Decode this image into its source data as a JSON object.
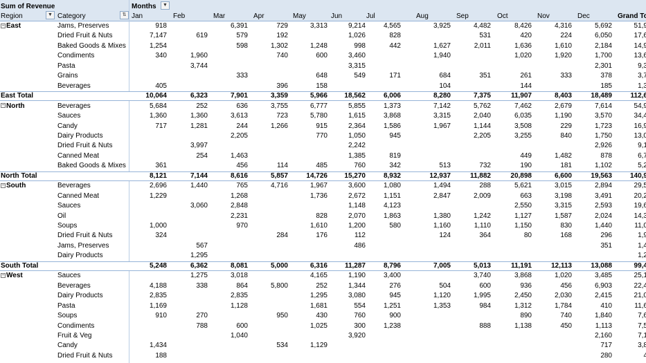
{
  "header": {
    "corner_label": "Sum of Revenue",
    "column_label": "Months",
    "row_label": "Region",
    "category_label": "Category",
    "months": [
      "Jan",
      "Feb",
      "Mar",
      "Apr",
      "May",
      "Jun",
      "Jul",
      "Aug",
      "Sep",
      "Oct",
      "Nov",
      "Dec",
      "Grand To"
    ]
  },
  "rows": [
    {
      "region": "East",
      "category": "Jams, Preserves",
      "values": [
        "918",
        "",
        "6,391",
        "729",
        "3,313",
        "9,214",
        "4,565",
        "3,925",
        "4,482",
        "8,426",
        "4,316",
        "5,692",
        "51,9"
      ]
    },
    {
      "region": "",
      "category": "Dried Fruit & Nuts",
      "values": [
        "7,147",
        "619",
        "579",
        "192",
        "",
        "1,026",
        "828",
        "",
        "531",
        "420",
        "224",
        "6,050",
        "17,6"
      ]
    },
    {
      "region": "",
      "category": "Baked Goods & Mixes",
      "values": [
        "1,254",
        "",
        "598",
        "1,302",
        "1,248",
        "998",
        "442",
        "1,627",
        "2,011",
        "1,636",
        "1,610",
        "2,184",
        "14,9"
      ]
    },
    {
      "region": "",
      "category": "Condiments",
      "values": [
        "340",
        "1,960",
        "",
        "740",
        "600",
        "3,460",
        "",
        "1,940",
        "",
        "1,020",
        "1,920",
        "1,700",
        "13,6"
      ]
    },
    {
      "region": "",
      "category": "Pasta",
      "values": [
        "",
        "3,744",
        "",
        "",
        "",
        "3,315",
        "",
        "",
        "",
        "",
        "",
        "2,301",
        "9,3"
      ]
    },
    {
      "region": "",
      "category": "Grains",
      "values": [
        "",
        "",
        "333",
        "",
        "648",
        "549",
        "171",
        "684",
        "351",
        "261",
        "333",
        "378",
        "3,7"
      ]
    },
    {
      "region": "",
      "category": "Beverages",
      "values": [
        "405",
        "",
        "",
        "396",
        "158",
        "",
        "",
        "104",
        "",
        "144",
        "",
        "185",
        "1,3"
      ]
    },
    {
      "total": true,
      "region": "East Total",
      "values": [
        "10,064",
        "6,323",
        "7,901",
        "3,359",
        "5,966",
        "18,562",
        "6,006",
        "8,280",
        "7,375",
        "11,907",
        "8,403",
        "18,489",
        "112,6"
      ]
    },
    {
      "region": "North",
      "category": "Beverages",
      "values": [
        "5,684",
        "252",
        "636",
        "3,755",
        "6,777",
        "5,855",
        "1,373",
        "7,142",
        "5,762",
        "7,462",
        "2,679",
        "7,614",
        "54,9"
      ]
    },
    {
      "region": "",
      "category": "Sauces",
      "values": [
        "1,360",
        "1,360",
        "3,613",
        "723",
        "5,780",
        "1,615",
        "3,868",
        "3,315",
        "2,040",
        "6,035",
        "1,190",
        "3,570",
        "34,4"
      ]
    },
    {
      "region": "",
      "category": "Candy",
      "values": [
        "717",
        "1,281",
        "244",
        "1,266",
        "915",
        "2,364",
        "1,586",
        "1,967",
        "1,144",
        "3,508",
        "229",
        "1,723",
        "16,9"
      ]
    },
    {
      "region": "",
      "category": "Dairy Products",
      "values": [
        "",
        "",
        "2,205",
        "",
        "770",
        "1,050",
        "945",
        "",
        "2,205",
        "3,255",
        "840",
        "1,750",
        "13,0"
      ]
    },
    {
      "region": "",
      "category": "Dried Fruit & Nuts",
      "values": [
        "",
        "3,997",
        "",
        "",
        "",
        "2,242",
        "",
        "",
        "",
        "",
        "",
        "2,926",
        "9,1"
      ]
    },
    {
      "region": "",
      "category": "Canned Meat",
      "values": [
        "",
        "254",
        "1,463",
        "",
        "",
        "1,385",
        "819",
        "",
        "",
        "449",
        "1,482",
        "878",
        "6,7"
      ]
    },
    {
      "region": "",
      "category": "Baked Goods & Mixes",
      "values": [
        "361",
        "",
        "456",
        "114",
        "485",
        "760",
        "342",
        "513",
        "732",
        "190",
        "181",
        "1,102",
        "5,2"
      ]
    },
    {
      "total": true,
      "region": "North Total",
      "values": [
        "8,121",
        "7,144",
        "8,616",
        "5,857",
        "14,726",
        "15,270",
        "8,932",
        "12,937",
        "11,882",
        "20,898",
        "6,600",
        "19,563",
        "140,9"
      ]
    },
    {
      "region": "South",
      "category": "Beverages",
      "values": [
        "2,696",
        "1,440",
        "765",
        "4,716",
        "1,967",
        "3,600",
        "1,080",
        "1,494",
        "288",
        "5,621",
        "3,015",
        "2,894",
        "29,5"
      ]
    },
    {
      "region": "",
      "category": "Canned Meat",
      "values": [
        "1,229",
        "",
        "1,268",
        "",
        "1,736",
        "2,672",
        "1,151",
        "2,847",
        "2,009",
        "663",
        "3,198",
        "3,491",
        "20,2"
      ]
    },
    {
      "region": "",
      "category": "Sauces",
      "values": [
        "",
        "3,060",
        "2,848",
        "",
        "",
        "1,148",
        "4,123",
        "",
        "",
        "2,550",
        "3,315",
        "2,593",
        "19,6"
      ]
    },
    {
      "region": "",
      "category": "Oil",
      "values": [
        "",
        "",
        "2,231",
        "",
        "828",
        "2,070",
        "1,863",
        "1,380",
        "1,242",
        "1,127",
        "1,587",
        "2,024",
        "14,3"
      ]
    },
    {
      "region": "",
      "category": "Soups",
      "values": [
        "1,000",
        "",
        "970",
        "",
        "1,610",
        "1,200",
        "580",
        "1,160",
        "1,110",
        "1,150",
        "830",
        "1,440",
        "11,0"
      ]
    },
    {
      "region": "",
      "category": "Dried Fruit & Nuts",
      "values": [
        "324",
        "",
        "",
        "284",
        "176",
        "112",
        "",
        "124",
        "364",
        "80",
        "168",
        "296",
        "1,9"
      ]
    },
    {
      "region": "",
      "category": "Jams, Preserves",
      "values": [
        "",
        "567",
        "",
        "",
        "",
        "486",
        "",
        "",
        "",
        "",
        "",
        "351",
        "1,4"
      ]
    },
    {
      "region": "",
      "category": "Dairy Products",
      "values": [
        "",
        "1,295",
        "",
        "",
        "",
        "",
        "",
        "",
        "",
        "",
        "",
        "",
        "1,2"
      ]
    },
    {
      "total": true,
      "region": "South Total",
      "values": [
        "5,248",
        "6,362",
        "8,081",
        "5,000",
        "6,316",
        "11,287",
        "8,796",
        "7,005",
        "5,013",
        "11,191",
        "12,113",
        "13,088",
        "99,4"
      ]
    },
    {
      "region": "West",
      "category": "Sauces",
      "values": [
        "",
        "1,275",
        "3,018",
        "",
        "4,165",
        "1,190",
        "3,400",
        "",
        "3,740",
        "3,868",
        "1,020",
        "3,485",
        "25,1"
      ]
    },
    {
      "region": "",
      "category": "Beverages",
      "values": [
        "4,188",
        "338",
        "864",
        "5,800",
        "252",
        "1,344",
        "276",
        "504",
        "600",
        "936",
        "456",
        "6,903",
        "22,4"
      ]
    },
    {
      "region": "",
      "category": "Dairy Products",
      "values": [
        "2,835",
        "",
        "2,835",
        "",
        "1,295",
        "3,080",
        "945",
        "1,120",
        "1,995",
        "2,450",
        "2,030",
        "2,415",
        "21,0"
      ]
    },
    {
      "region": "",
      "category": "Pasta",
      "values": [
        "1,169",
        "",
        "1,128",
        "",
        "1,681",
        "554",
        "1,251",
        "1,353",
        "984",
        "1,312",
        "1,784",
        "410",
        "11,6"
      ]
    },
    {
      "region": "",
      "category": "Soups",
      "values": [
        "910",
        "270",
        "",
        "950",
        "430",
        "760",
        "900",
        "",
        "",
        "890",
        "740",
        "1,840",
        "7,6"
      ]
    },
    {
      "region": "",
      "category": "Condiments",
      "values": [
        "",
        "788",
        "600",
        "",
        "1,025",
        "300",
        "1,238",
        "",
        "888",
        "1,138",
        "450",
        "1,113",
        "7,5"
      ]
    },
    {
      "region": "",
      "category": "Fruit & Veg",
      "values": [
        "",
        "",
        "1,040",
        "",
        "",
        "3,920",
        "",
        "",
        "",
        "",
        "",
        "2,160",
        "7,1"
      ]
    },
    {
      "region": "",
      "category": "Candy",
      "values": [
        "1,434",
        "",
        "",
        "534",
        "1,129",
        "",
        "",
        "",
        "",
        "",
        "",
        "717",
        "3,8"
      ]
    },
    {
      "region": "",
      "category": "Dried Fruit & Nuts",
      "values": [
        "188",
        "",
        "",
        "",
        "",
        "",
        "",
        "",
        "",
        "",
        "",
        "280",
        "4"
      ]
    }
  ],
  "icons": {
    "collapse": "minus-box-icon",
    "dropdown": "dropdown-arrow-icon",
    "sort": "sort-filter-icon"
  }
}
